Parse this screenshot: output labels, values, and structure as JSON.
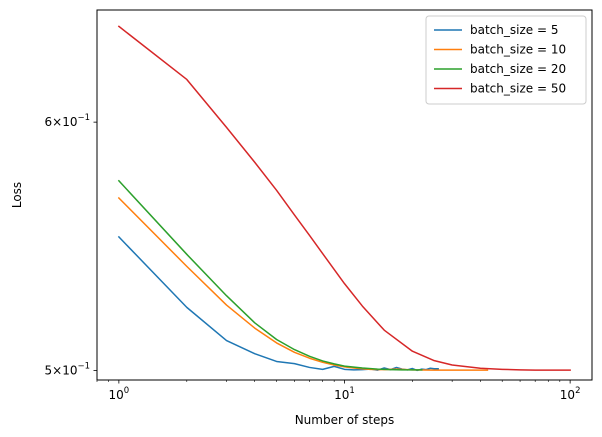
{
  "chart_data": {
    "type": "line",
    "xlabel": "Number of steps",
    "ylabel": "Loss",
    "xscale": "log",
    "yscale": "log",
    "xlim": [
      0.8,
      125
    ],
    "ylim": [
      0.4965,
      0.6515
    ],
    "grid": false,
    "legend_position": "top-right",
    "x_ticks": [
      {
        "value": 1,
        "base": "10",
        "exp": "0"
      },
      {
        "value": 10,
        "base": "10",
        "exp": "1"
      },
      {
        "value": 100,
        "base": "10",
        "exp": "2"
      }
    ],
    "y_ticks": [
      {
        "value": 0.5,
        "mantissa": "5",
        "base": "10",
        "exp": "−1"
      },
      {
        "value": 0.6,
        "mantissa": "6",
        "base": "10",
        "exp": "−1"
      }
    ],
    "series": [
      {
        "name": "batch_size = 5",
        "color": "#1f77b4",
        "x": [
          1,
          2,
          3,
          4,
          5,
          6,
          7,
          8,
          9,
          10,
          11,
          12,
          13,
          14,
          15,
          16,
          17,
          18,
          19,
          20,
          21,
          22,
          23,
          24,
          25,
          26
        ],
        "y": [
          0.5515,
          0.5237,
          0.5111,
          0.5062,
          0.5033,
          0.5025,
          0.5011,
          0.5004,
          0.5015,
          0.5004,
          0.5002,
          0.5003,
          0.5005,
          0.5001,
          0.5009,
          0.5003,
          0.5011,
          0.5005,
          0.5002,
          0.5007,
          0.5,
          0.5005,
          0.5003,
          0.5008,
          0.5006,
          0.5006
        ]
      },
      {
        "name": "batch_size = 10",
        "color": "#ff7f0e",
        "x": [
          1,
          2,
          3,
          4,
          5,
          6,
          7,
          8,
          9,
          10,
          11,
          12,
          13,
          15,
          17,
          20,
          25,
          30,
          35,
          43
        ],
        "y": [
          0.5675,
          0.5397,
          0.5246,
          0.5158,
          0.5102,
          0.5067,
          0.5045,
          0.503,
          0.502,
          0.5013,
          0.5009,
          0.5006,
          0.5004,
          0.5003,
          0.5005,
          0.5002,
          0.5001,
          0.5001,
          0.5001,
          0.5001
        ]
      },
      {
        "name": "batch_size = 20",
        "color": "#2ca02c",
        "x": [
          1,
          2,
          3,
          4,
          5,
          6,
          7,
          8,
          9,
          10,
          12,
          14,
          16,
          18,
          20,
          22
        ],
        "y": [
          0.5747,
          0.5445,
          0.5282,
          0.5178,
          0.5115,
          0.5077,
          0.5052,
          0.5035,
          0.5024,
          0.5016,
          0.5009,
          0.5005,
          0.5003,
          0.5002,
          0.5002,
          0.5002
        ]
      },
      {
        "name": "batch_size = 50",
        "color": "#d62728",
        "x": [
          1,
          2,
          3,
          4,
          5,
          6,
          7,
          8,
          10,
          12,
          15,
          20,
          25,
          30,
          40,
          50,
          60,
          70,
          80,
          100
        ],
        "y": [
          0.6437,
          0.6191,
          0.5977,
          0.5826,
          0.5707,
          0.5605,
          0.5521,
          0.5448,
          0.5329,
          0.5242,
          0.515,
          0.5071,
          0.5036,
          0.502,
          0.5008,
          0.5004,
          0.5002,
          0.5001,
          0.5001,
          0.5001
        ]
      }
    ]
  }
}
